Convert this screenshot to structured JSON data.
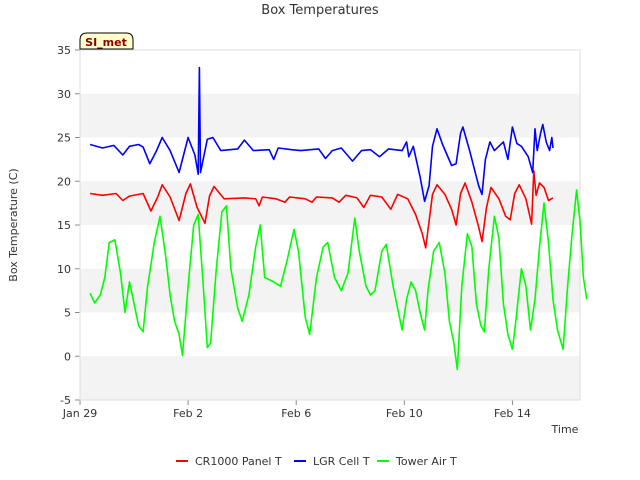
{
  "chart_data": {
    "type": "line",
    "title": "Box Temperatures",
    "xlabel": "Time",
    "ylabel": "Box Temperature (C)",
    "badge": "SI_met",
    "ylim": [
      -5,
      35
    ],
    "yticks": [
      -5,
      0,
      5,
      10,
      15,
      20,
      25,
      30,
      35
    ],
    "xlim": [
      "2021-01-29",
      "2021-02-16 12:00"
    ],
    "xticks": [
      {
        "date": "2021-01-29",
        "label": "Jan 29"
      },
      {
        "date": "2021-02-02",
        "label": "Feb 2"
      },
      {
        "date": "2021-02-06",
        "label": "Feb 6"
      },
      {
        "date": "2021-02-10",
        "label": "Feb 10"
      },
      {
        "date": "2021-02-14",
        "label": "Feb 14"
      }
    ],
    "grid": "horizontal bands",
    "legend_position": "bottom",
    "series": [
      {
        "name": "CR1000 Panel T",
        "color": "#ff0000",
        "points": [
          [
            "2021-01-29 09:00",
            18.6
          ],
          [
            "2021-01-29 20:00",
            18.4
          ],
          [
            "2021-01-30 08:00",
            18.6
          ],
          [
            "2021-01-30 14:00",
            17.8
          ],
          [
            "2021-01-30 20:00",
            18.3
          ],
          [
            "2021-01-31 08:00",
            18.6
          ],
          [
            "2021-01-31 15:00",
            16.6
          ],
          [
            "2021-01-31 21:00",
            18.2
          ],
          [
            "2021-02-01 01:00",
            19.6
          ],
          [
            "2021-02-01 08:00",
            18.2
          ],
          [
            "2021-02-01 16:00",
            15.5
          ],
          [
            "2021-02-01 22:00",
            18.6
          ],
          [
            "2021-02-02 02:00",
            19.7
          ],
          [
            "2021-02-02 08:00",
            17.0
          ],
          [
            "2021-02-02 15:00",
            15.2
          ],
          [
            "2021-02-02 19:00",
            18.3
          ],
          [
            "2021-02-02 23:00",
            19.4
          ],
          [
            "2021-02-03 08:00",
            18.0
          ],
          [
            "2021-02-04 02:00",
            18.1
          ],
          [
            "2021-02-04 12:00",
            18.0
          ],
          [
            "2021-02-04 15:00",
            17.2
          ],
          [
            "2021-02-04 18:00",
            18.2
          ],
          [
            "2021-02-05 06:00",
            18.0
          ],
          [
            "2021-02-05 14:00",
            17.6
          ],
          [
            "2021-02-05 18:00",
            18.2
          ],
          [
            "2021-02-06 08:00",
            18.0
          ],
          [
            "2021-02-06 14:00",
            17.6
          ],
          [
            "2021-02-06 18:00",
            18.2
          ],
          [
            "2021-02-07 08:00",
            18.1
          ],
          [
            "2021-02-07 14:00",
            17.6
          ],
          [
            "2021-02-07 20:00",
            18.4
          ],
          [
            "2021-02-08 06:00",
            18.1
          ],
          [
            "2021-02-08 12:00",
            17.0
          ],
          [
            "2021-02-08 18:00",
            18.4
          ],
          [
            "2021-02-09 04:00",
            18.2
          ],
          [
            "2021-02-09 12:00",
            16.8
          ],
          [
            "2021-02-09 18:00",
            18.5
          ],
          [
            "2021-02-10 03:00",
            18.0
          ],
          [
            "2021-02-10 10:00",
            16.2
          ],
          [
            "2021-02-10 16:00",
            14.0
          ],
          [
            "2021-02-10 19:00",
            12.4
          ],
          [
            "2021-02-11 01:00",
            18.5
          ],
          [
            "2021-02-11 05:00",
            19.6
          ],
          [
            "2021-02-11 12:00",
            18.5
          ],
          [
            "2021-02-11 18:00",
            16.8
          ],
          [
            "2021-02-11 22:00",
            15.0
          ],
          [
            "2021-02-12 02:00",
            18.6
          ],
          [
            "2021-02-12 06:00",
            19.8
          ],
          [
            "2021-02-12 12:00",
            17.6
          ],
          [
            "2021-02-12 18:00",
            14.8
          ],
          [
            "2021-02-12 21:00",
            13.1
          ],
          [
            "2021-02-13 01:00",
            17.0
          ],
          [
            "2021-02-13 05:00",
            19.3
          ],
          [
            "2021-02-13 12:00",
            18.0
          ],
          [
            "2021-02-13 18:00",
            16.0
          ],
          [
            "2021-02-13 22:00",
            15.6
          ],
          [
            "2021-02-14 02:00",
            18.6
          ],
          [
            "2021-02-14 06:00",
            19.6
          ],
          [
            "2021-02-14 12:00",
            18.0
          ],
          [
            "2021-02-14 17:00",
            15.1
          ],
          [
            "2021-02-14 19:00",
            21.2
          ],
          [
            "2021-02-14 21:00",
            18.4
          ],
          [
            "2021-02-15 00:00",
            19.8
          ],
          [
            "2021-02-15 04:00",
            19.3
          ],
          [
            "2021-02-15 08:00",
            17.8
          ],
          [
            "2021-02-15 12:00",
            18.1
          ]
        ]
      },
      {
        "name": "LGR Cell T",
        "color": "#0000ff",
        "points": [
          [
            "2021-01-29 09:00",
            24.2
          ],
          [
            "2021-01-29 20:00",
            23.8
          ],
          [
            "2021-01-30 06:00",
            24.1
          ],
          [
            "2021-01-30 14:00",
            23.0
          ],
          [
            "2021-01-30 20:00",
            24.0
          ],
          [
            "2021-01-31 04:00",
            24.2
          ],
          [
            "2021-01-31 08:00",
            23.9
          ],
          [
            "2021-01-31 14:00",
            22.0
          ],
          [
            "2021-01-31 20:00",
            23.5
          ],
          [
            "2021-02-01 01:00",
            25.0
          ],
          [
            "2021-02-01 08:00",
            23.5
          ],
          [
            "2021-02-01 16:00",
            21.0
          ],
          [
            "2021-02-01 20:00",
            23.0
          ],
          [
            "2021-02-02 00:00",
            25.0
          ],
          [
            "2021-02-02 06:00",
            23.0
          ],
          [
            "2021-02-02 09:00",
            20.8
          ],
          [
            "2021-02-02 10:00",
            33.0
          ],
          [
            "2021-02-02 11:00",
            21.0
          ],
          [
            "2021-02-02 17:00",
            24.8
          ],
          [
            "2021-02-02 22:00",
            25.0
          ],
          [
            "2021-02-03 05:00",
            23.5
          ],
          [
            "2021-02-03 20:00",
            23.7
          ],
          [
            "2021-02-04 02:00",
            24.7
          ],
          [
            "2021-02-04 10:00",
            23.5
          ],
          [
            "2021-02-05 00:00",
            23.6
          ],
          [
            "2021-02-05 04:00",
            22.5
          ],
          [
            "2021-02-05 08:00",
            23.8
          ],
          [
            "2021-02-05 20:00",
            23.6
          ],
          [
            "2021-02-06 04:00",
            23.5
          ],
          [
            "2021-02-06 20:00",
            23.7
          ],
          [
            "2021-02-07 02:00",
            22.6
          ],
          [
            "2021-02-07 08:00",
            23.5
          ],
          [
            "2021-02-07 16:00",
            23.8
          ],
          [
            "2021-02-08 02:00",
            22.3
          ],
          [
            "2021-02-08 10:00",
            23.5
          ],
          [
            "2021-02-08 18:00",
            23.6
          ],
          [
            "2021-02-09 02:00",
            22.8
          ],
          [
            "2021-02-09 10:00",
            23.7
          ],
          [
            "2021-02-09 22:00",
            23.5
          ],
          [
            "2021-02-10 02:00",
            24.5
          ],
          [
            "2021-02-10 04:00",
            22.8
          ],
          [
            "2021-02-10 08:00",
            24.0
          ],
          [
            "2021-02-10 14:00",
            20.5
          ],
          [
            "2021-02-10 18:00",
            17.7
          ],
          [
            "2021-02-10 22:00",
            19.5
          ],
          [
            "2021-02-11 01:00",
            24.0
          ],
          [
            "2021-02-11 05:00",
            26.0
          ],
          [
            "2021-02-11 10:00",
            24.2
          ],
          [
            "2021-02-11 18:00",
            21.8
          ],
          [
            "2021-02-11 22:00",
            22.0
          ],
          [
            "2021-02-12 02:00",
            25.5
          ],
          [
            "2021-02-12 04:00",
            26.2
          ],
          [
            "2021-02-12 10:00",
            23.5
          ],
          [
            "2021-02-12 18:00",
            19.5
          ],
          [
            "2021-02-12 21:00",
            18.5
          ],
          [
            "2021-02-13 00:00",
            22.5
          ],
          [
            "2021-02-13 04:00",
            24.5
          ],
          [
            "2021-02-13 08:00",
            23.5
          ],
          [
            "2021-02-13 16:00",
            24.5
          ],
          [
            "2021-02-13 20:00",
            22.5
          ],
          [
            "2021-02-14 00:00",
            26.2
          ],
          [
            "2021-02-14 04:00",
            24.3
          ],
          [
            "2021-02-14 08:00",
            24.0
          ],
          [
            "2021-02-14 14:00",
            22.8
          ],
          [
            "2021-02-14 18:00",
            21.0
          ],
          [
            "2021-02-14 20:00",
            26.0
          ],
          [
            "2021-02-14 22:00",
            23.5
          ],
          [
            "2021-02-15 01:00",
            25.5
          ],
          [
            "2021-02-15 03:00",
            26.5
          ],
          [
            "2021-02-15 06:00",
            24.5
          ],
          [
            "2021-02-15 09:00",
            23.5
          ],
          [
            "2021-02-15 11:00",
            25.0
          ],
          [
            "2021-02-15 12:00",
            23.8
          ]
        ]
      },
      {
        "name": "Tower Air T",
        "color": "#00ff00",
        "points": [
          [
            "2021-01-29 09:00",
            7.2
          ],
          [
            "2021-01-29 13:00",
            6.1
          ],
          [
            "2021-01-29 18:00",
            7.0
          ],
          [
            "2021-01-29 22:00",
            9.0
          ],
          [
            "2021-01-30 02:00",
            13.0
          ],
          [
            "2021-01-30 07:00",
            13.3
          ],
          [
            "2021-01-30 12:00",
            9.5
          ],
          [
            "2021-01-30 16:00",
            5.0
          ],
          [
            "2021-01-30 20:00",
            8.5
          ],
          [
            "2021-01-31 00:00",
            6.0
          ],
          [
            "2021-01-31 04:00",
            3.5
          ],
          [
            "2021-01-31 08:00",
            2.8
          ],
          [
            "2021-01-31 12:00",
            8.0
          ],
          [
            "2021-01-31 18:00",
            13.0
          ],
          [
            "2021-01-31 23:00",
            16.0
          ],
          [
            "2021-02-01 04:00",
            11.5
          ],
          [
            "2021-02-01 08:00",
            7.0
          ],
          [
            "2021-02-01 12:00",
            4.0
          ],
          [
            "2021-02-01 16:00",
            2.5
          ],
          [
            "2021-02-01 19:00",
            0.1
          ],
          [
            "2021-02-02 00:00",
            8.0
          ],
          [
            "2021-02-02 05:00",
            15.0
          ],
          [
            "2021-02-02 09:00",
            16.2
          ],
          [
            "2021-02-02 14:00",
            7.0
          ],
          [
            "2021-02-02 17:00",
            1.0
          ],
          [
            "2021-02-02 20:00",
            1.5
          ],
          [
            "2021-02-03 01:00",
            10.0
          ],
          [
            "2021-02-03 06:00",
            16.5
          ],
          [
            "2021-02-03 10:00",
            17.2
          ],
          [
            "2021-02-03 14:00",
            10.0
          ],
          [
            "2021-02-03 20:00",
            5.5
          ],
          [
            "2021-02-04 00:00",
            4.0
          ],
          [
            "2021-02-04 06:00",
            7.0
          ],
          [
            "2021-02-04 12:00",
            12.5
          ],
          [
            "2021-02-04 16:00",
            15.0
          ],
          [
            "2021-02-04 20:00",
            9.0
          ],
          [
            "2021-02-05 04:00",
            8.5
          ],
          [
            "2021-02-05 10:00",
            8.0
          ],
          [
            "2021-02-05 16:00",
            11.0
          ],
          [
            "2021-02-05 22:00",
            14.5
          ],
          [
            "2021-02-06 02:00",
            12.0
          ],
          [
            "2021-02-06 08:00",
            4.5
          ],
          [
            "2021-02-06 12:00",
            2.5
          ],
          [
            "2021-02-06 18:00",
            9.0
          ],
          [
            "2021-02-07 00:00",
            12.5
          ],
          [
            "2021-02-07 04:00",
            13.0
          ],
          [
            "2021-02-07 10:00",
            9.0
          ],
          [
            "2021-02-07 16:00",
            7.5
          ],
          [
            "2021-02-07 22:00",
            9.5
          ],
          [
            "2021-02-08 04:00",
            15.8
          ],
          [
            "2021-02-08 08:00",
            12.0
          ],
          [
            "2021-02-08 14:00",
            8.0
          ],
          [
            "2021-02-08 18:00",
            7.0
          ],
          [
            "2021-02-08 22:00",
            7.5
          ],
          [
            "2021-02-09 04:00",
            12.0
          ],
          [
            "2021-02-09 08:00",
            12.8
          ],
          [
            "2021-02-09 14:00",
            8.0
          ],
          [
            "2021-02-09 18:00",
            5.5
          ],
          [
            "2021-02-09 22:00",
            3.0
          ],
          [
            "2021-02-10 02:00",
            6.5
          ],
          [
            "2021-02-10 06:00",
            8.5
          ],
          [
            "2021-02-10 10:00",
            7.5
          ],
          [
            "2021-02-10 14:00",
            5.0
          ],
          [
            "2021-02-10 18:00",
            3.0
          ],
          [
            "2021-02-10 21:00",
            7.5
          ],
          [
            "2021-02-11 02:00",
            12.0
          ],
          [
            "2021-02-11 07:00",
            13.0
          ],
          [
            "2021-02-11 12:00",
            9.5
          ],
          [
            "2021-02-11 16:00",
            4.0
          ],
          [
            "2021-02-11 20:00",
            1.5
          ],
          [
            "2021-02-11 23:00",
            -1.5
          ],
          [
            "2021-02-12 03:00",
            8.0
          ],
          [
            "2021-02-12 08:00",
            14.0
          ],
          [
            "2021-02-12 12:00",
            12.5
          ],
          [
            "2021-02-12 16:00",
            6.0
          ],
          [
            "2021-02-12 20:00",
            3.5
          ],
          [
            "2021-02-12 23:00",
            2.8
          ],
          [
            "2021-02-13 03:00",
            10.0
          ],
          [
            "2021-02-13 08:00",
            16.0
          ],
          [
            "2021-02-13 12:00",
            13.5
          ],
          [
            "2021-02-13 16:00",
            6.0
          ],
          [
            "2021-02-13 20:00",
            2.5
          ],
          [
            "2021-02-14 00:00",
            0.8
          ],
          [
            "2021-02-14 03:00",
            4.0
          ],
          [
            "2021-02-14 08:00",
            10.0
          ],
          [
            "2021-02-14 12:00",
            8.0
          ],
          [
            "2021-02-14 16:00",
            3.0
          ],
          [
            "2021-02-14 20:00",
            6.5
          ],
          [
            "2021-02-15 00:00",
            12.5
          ],
          [
            "2021-02-15 04:00",
            17.5
          ],
          [
            "2021-02-15 08:00",
            13.0
          ],
          [
            "2021-02-15 12:00",
            6.5
          ],
          [
            "2021-02-15 16:00",
            3.0
          ],
          [
            "2021-02-15 21:00",
            0.8
          ],
          [
            "2021-02-16 01:00",
            8.0
          ],
          [
            "2021-02-16 05:00",
            14.0
          ],
          [
            "2021-02-16 09:00",
            19.0
          ],
          [
            "2021-02-16 12:00",
            15.5
          ],
          [
            "2021-02-16 15:00",
            9.0
          ],
          [
            "2021-02-16 18:00",
            6.5
          ]
        ]
      }
    ]
  }
}
